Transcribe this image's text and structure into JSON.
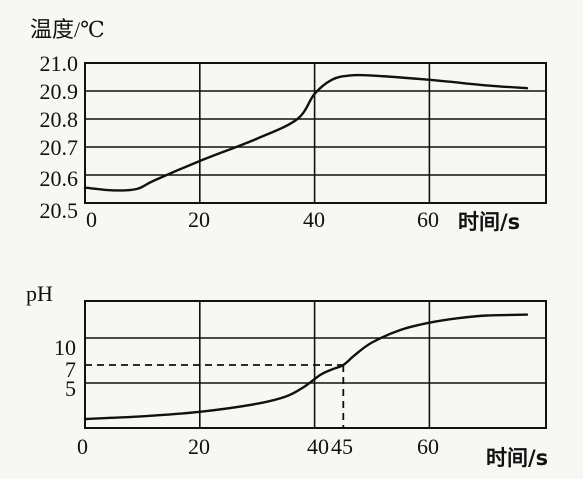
{
  "chart_data": [
    {
      "type": "line",
      "ylabel": "温度/℃",
      "xlabel": "时间/s",
      "xlim": [
        0,
        80
      ],
      "ylim": [
        20.5,
        21.0
      ],
      "x_ticks": [
        "0",
        "20",
        "40",
        "60"
      ],
      "y_ticks": [
        "20.5",
        "20.6",
        "20.7",
        "20.8",
        "20.9",
        "21.0"
      ],
      "grid": true,
      "series": [
        {
          "x": [
            0,
            5,
            9,
            12,
            20,
            30,
            37,
            40,
            43,
            46,
            50,
            60,
            70,
            77
          ],
          "y": [
            20.555,
            20.545,
            20.55,
            20.58,
            20.65,
            20.73,
            20.8,
            20.89,
            20.94,
            20.955,
            20.955,
            20.94,
            20.92,
            20.91
          ]
        }
      ]
    },
    {
      "type": "line",
      "ylabel": "pH",
      "xlabel": "时间/s",
      "xlim": [
        0,
        80
      ],
      "ylim": [
        0,
        14
      ],
      "x_ticks": [
        "0",
        "20",
        "40",
        "45",
        "60"
      ],
      "y_ticks": [
        "5",
        "7",
        "10"
      ],
      "grid": true,
      "annotation": {
        "x": 45,
        "y": 7
      },
      "series": [
        {
          "x": [
            0,
            10,
            20,
            30,
            35,
            38,
            41,
            43,
            45,
            47,
            50,
            55,
            60,
            65,
            70,
            77
          ],
          "y": [
            1.0,
            1.3,
            1.8,
            2.7,
            3.5,
            4.5,
            5.9,
            6.5,
            7.0,
            8.1,
            9.5,
            10.9,
            11.7,
            12.2,
            12.5,
            12.6
          ]
        }
      ]
    }
  ]
}
